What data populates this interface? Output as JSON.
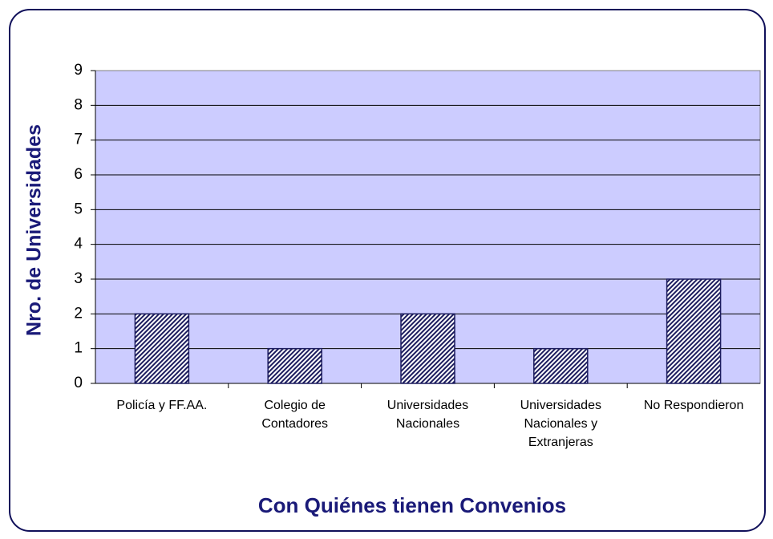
{
  "chart_data": {
    "type": "bar",
    "y_label": "Nro. de Universidades",
    "x_label": "Con Quiénes tienen Convenios",
    "categories": [
      "Policía y FF.AA.",
      "Colegio de Contadores",
      "Universidades Nacionales",
      "Universidades Nacionales y Extranjeras",
      "No Respondieron"
    ],
    "values": [
      2,
      1,
      2,
      1,
      3
    ],
    "color": "#1c1c5e",
    "ylim": [
      0,
      9
    ],
    "yticks": [
      0,
      1,
      2,
      3,
      4,
      5,
      6,
      7,
      8,
      9
    ],
    "grid": true
  }
}
